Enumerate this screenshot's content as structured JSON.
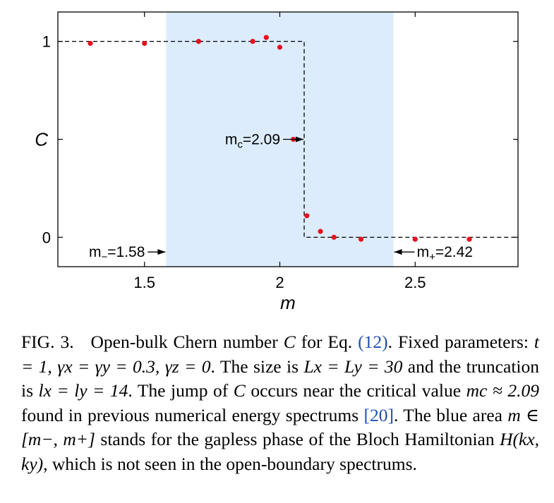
{
  "chart_data": {
    "type": "scatter",
    "xlabel": "m",
    "ylabel": "C",
    "xlim": [
      1.18,
      2.88
    ],
    "ylim": [
      -0.15,
      1.15
    ],
    "x_ticks": [
      {
        "value": 1.5,
        "label": "1.5"
      },
      {
        "value": 2.0,
        "label": "2"
      },
      {
        "value": 2.5,
        "label": "2.5"
      }
    ],
    "y_ticks": [
      {
        "value": 0,
        "label": "0"
      },
      {
        "value": 1,
        "label": "1"
      }
    ],
    "shaded_region": {
      "x_start": 1.58,
      "x_end": 2.42,
      "color": "#dcecfc"
    },
    "step_line": {
      "x_jump": 2.09,
      "y_before": 1,
      "y_after": 0,
      "style": "dashed",
      "color": "#000000"
    },
    "points": {
      "color": "#e8101e",
      "x": [
        1.3,
        1.5,
        1.7,
        1.9,
        1.95,
        2.0,
        2.05,
        2.1,
        2.15,
        2.2,
        2.3,
        2.5,
        2.7
      ],
      "y": [
        0.99,
        0.99,
        1.0,
        1.0,
        1.02,
        0.97,
        0.5,
        0.11,
        0.03,
        0.0,
        -0.01,
        -0.01,
        -0.01
      ]
    },
    "annotations": {
      "mc": {
        "text": "m",
        "sub": "c",
        "rest": "=2.09",
        "x": 2.09,
        "y": 0.5
      },
      "mminus": {
        "text": "m",
        "sub": "−",
        "rest": "=1.58",
        "x": 1.58,
        "y": -0.075
      },
      "mplus": {
        "text": "m",
        "sub": "+",
        "rest": "=2.42",
        "x": 2.42,
        "y": -0.075
      }
    }
  },
  "caption": {
    "fig_label": "FIG. 3.",
    "part1": "Open-bulk Chern number ",
    "C": "C",
    "part2": " for Eq. ",
    "eq_ref": "(12)",
    "part3": ". Fixed parameters: ",
    "params": "t = 1, γx = γy = 0.3, γz = 0",
    "part4": ". The size is ",
    "size": "Lx = Ly = 30",
    "part5": " and the truncation is ",
    "trunc": "lx = ly = 14",
    "part6": ". The jump of ",
    "part7": " occurs near the critical value ",
    "crit": "mc ≈ 2.09",
    "part8": " found in previous numerical energy spectrums ",
    "cite": "[20]",
    "part9": ". The blue area ",
    "area": "m ∈ [m−, m+]",
    "part10": " stands for the gapless phase of the Bloch Hamiltonian ",
    "ham": "H(kx, ky)",
    "part11": ", which is not seen in the open-boundary spectrums."
  }
}
